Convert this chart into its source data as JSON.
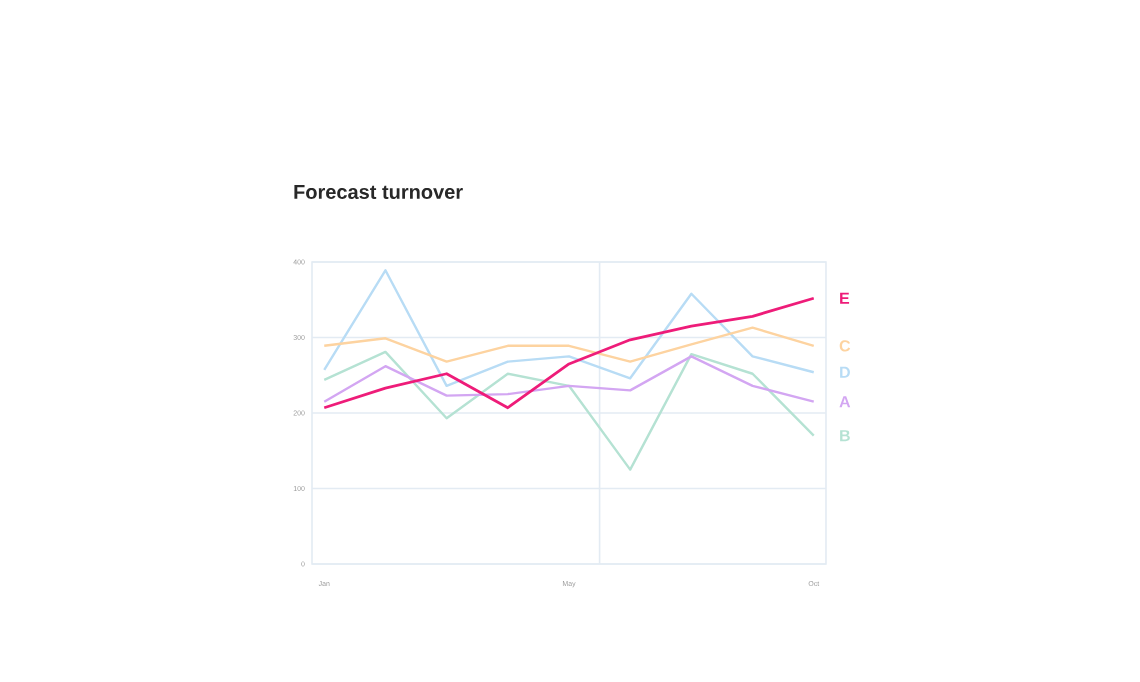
{
  "chart_data": {
    "type": "line",
    "title": "Forecast turnover",
    "categories": [
      "Jan",
      null,
      null,
      null,
      "May",
      null,
      null,
      null,
      "Oct"
    ],
    "series": [
      {
        "name": "E",
        "color": "#ee1c79",
        "values": [
          207,
          233,
          252,
          207,
          265,
          297,
          315,
          328,
          352
        ]
      },
      {
        "name": "C",
        "color": "#fdd3a0",
        "values": [
          289,
          299,
          268,
          289,
          289,
          268,
          291,
          313,
          289
        ]
      },
      {
        "name": "D",
        "color": "#b8dcf5",
        "values": [
          257,
          389,
          236,
          268,
          275,
          246,
          358,
          275,
          254
        ]
      },
      {
        "name": "A",
        "color": "#d3a6f2",
        "values": [
          215,
          262,
          223,
          225,
          236,
          230,
          275,
          236,
          215
        ]
      },
      {
        "name": "B",
        "color": "#b5e2d3",
        "values": [
          244,
          281,
          193,
          252,
          236,
          125,
          278,
          252,
          170
        ]
      }
    ],
    "ylim": [
      0,
      400
    ],
    "yticks": [
      0,
      100,
      200,
      300,
      400
    ],
    "grid": "y"
  }
}
